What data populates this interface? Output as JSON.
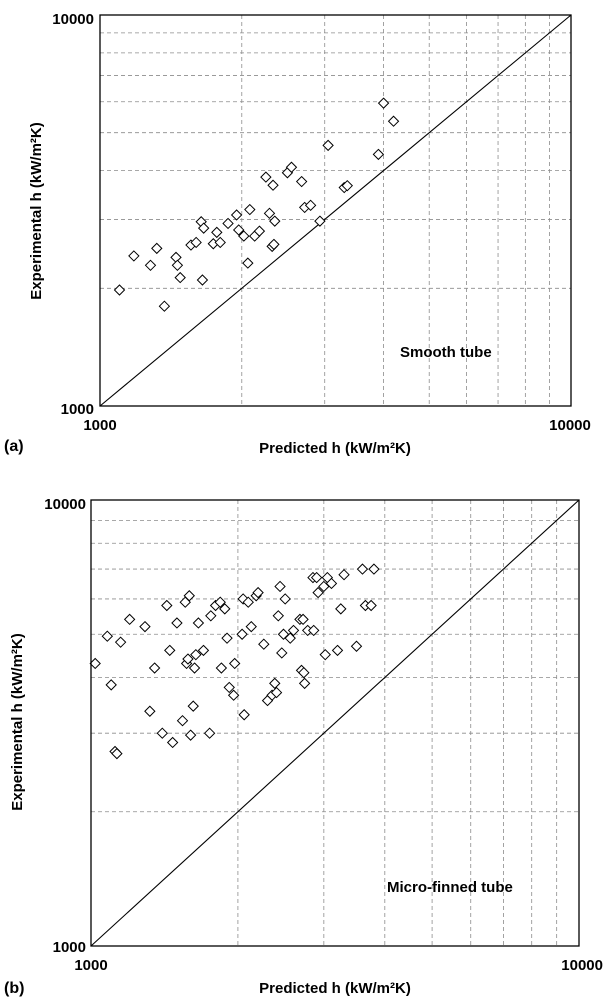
{
  "chart_data": [
    {
      "panel": "(a)",
      "type": "scatter",
      "annotation": "Smooth tube",
      "xlabel": "Predicted h (kW/m²K)",
      "ylabel": "Experimental h (kW/m²K)",
      "xscale": "log",
      "yscale": "log",
      "xlim": [
        1000,
        10000
      ],
      "ylim": [
        1000,
        10000
      ],
      "x_tick_labels": [
        "1000",
        "10000"
      ],
      "y_tick_labels": [
        "1000",
        "10000"
      ],
      "grid": true,
      "reference_line": "y = x",
      "marker": "diamond (open)",
      "points": [
        [
          1100,
          1980
        ],
        [
          1180,
          2420
        ],
        [
          1280,
          2290
        ],
        [
          1320,
          2530
        ],
        [
          1370,
          1800
        ],
        [
          1450,
          2400
        ],
        [
          1460,
          2290
        ],
        [
          1480,
          2130
        ],
        [
          1560,
          2580
        ],
        [
          1600,
          2620
        ],
        [
          1640,
          2960
        ],
        [
          1650,
          2100
        ],
        [
          1660,
          2850
        ],
        [
          1740,
          2600
        ],
        [
          1770,
          2780
        ],
        [
          1800,
          2620
        ],
        [
          1870,
          2930
        ],
        [
          1950,
          3080
        ],
        [
          1970,
          2820
        ],
        [
          2020,
          2720
        ],
        [
          2060,
          2320
        ],
        [
          2080,
          3180
        ],
        [
          2130,
          2720
        ],
        [
          2180,
          2800
        ],
        [
          2250,
          3850
        ],
        [
          2290,
          3110
        ],
        [
          2320,
          2560
        ],
        [
          2330,
          3670
        ],
        [
          2340,
          2590
        ],
        [
          2350,
          2970
        ],
        [
          2500,
          3950
        ],
        [
          2550,
          4080
        ],
        [
          2680,
          3750
        ],
        [
          2720,
          3220
        ],
        [
          2800,
          3260
        ],
        [
          2930,
          2970
        ],
        [
          3050,
          4640
        ],
        [
          3300,
          3620
        ],
        [
          3350,
          3660
        ],
        [
          3900,
          4400
        ],
        [
          4000,
          5950
        ],
        [
          4200,
          5350
        ]
      ]
    },
    {
      "panel": "(b)",
      "type": "scatter",
      "annotation": "Micro-finned tube",
      "xlabel": "Predicted h (kW/m²K)",
      "ylabel": "Experimental h (kW/m²K)",
      "xscale": "log",
      "yscale": "log",
      "xlim": [
        1000,
        10000
      ],
      "ylim": [
        1000,
        10000
      ],
      "x_tick_labels": [
        "1000",
        "10000"
      ],
      "y_tick_labels": [
        "1000",
        "10000"
      ],
      "grid": true,
      "reference_line": "y = x",
      "marker": "diamond (open)",
      "points": [
        [
          1020,
          4300
        ],
        [
          1080,
          4950
        ],
        [
          1100,
          3850
        ],
        [
          1120,
          2730
        ],
        [
          1130,
          2700
        ],
        [
          1150,
          4800
        ],
        [
          1200,
          5400
        ],
        [
          1290,
          5200
        ],
        [
          1320,
          3360
        ],
        [
          1350,
          4200
        ],
        [
          1400,
          3000
        ],
        [
          1430,
          5800
        ],
        [
          1450,
          4600
        ],
        [
          1470,
          2860
        ],
        [
          1500,
          5300
        ],
        [
          1540,
          3200
        ],
        [
          1560,
          5900
        ],
        [
          1570,
          4300
        ],
        [
          1580,
          4400
        ],
        [
          1590,
          6100
        ],
        [
          1600,
          2970
        ],
        [
          1620,
          3450
        ],
        [
          1630,
          4200
        ],
        [
          1640,
          4500
        ],
        [
          1660,
          5300
        ],
        [
          1700,
          4600
        ],
        [
          1750,
          3000
        ],
        [
          1760,
          5500
        ],
        [
          1800,
          5800
        ],
        [
          1840,
          5900
        ],
        [
          1850,
          4200
        ],
        [
          1880,
          5700
        ],
        [
          1900,
          4900
        ],
        [
          1920,
          3800
        ],
        [
          1960,
          3650
        ],
        [
          1970,
          4300
        ],
        [
          2040,
          5000
        ],
        [
          2050,
          6000
        ],
        [
          2060,
          3300
        ],
        [
          2100,
          5900
        ],
        [
          2130,
          5200
        ],
        [
          2180,
          6100
        ],
        [
          2200,
          6200
        ],
        [
          2260,
          4750
        ],
        [
          2300,
          3550
        ],
        [
          2350,
          3650
        ],
        [
          2380,
          3880
        ],
        [
          2400,
          3700
        ],
        [
          2420,
          5500
        ],
        [
          2440,
          6400
        ],
        [
          2460,
          4540
        ],
        [
          2480,
          5000
        ],
        [
          2500,
          6000
        ],
        [
          2560,
          4900
        ],
        [
          2600,
          5100
        ],
        [
          2680,
          5400
        ],
        [
          2700,
          4150
        ],
        [
          2720,
          5400
        ],
        [
          2730,
          4100
        ],
        [
          2740,
          3880
        ],
        [
          2780,
          5100
        ],
        [
          2850,
          6700
        ],
        [
          2860,
          5100
        ],
        [
          2900,
          6700
        ],
        [
          2920,
          6200
        ],
        [
          3000,
          6400
        ],
        [
          3020,
          4500
        ],
        [
          3050,
          6700
        ],
        [
          3110,
          6500
        ],
        [
          3200,
          4600
        ],
        [
          3250,
          5700
        ],
        [
          3300,
          6800
        ],
        [
          3500,
          4700
        ],
        [
          3600,
          7000
        ],
        [
          3650,
          5800
        ],
        [
          3750,
          5800
        ],
        [
          3800,
          7000
        ]
      ]
    }
  ]
}
